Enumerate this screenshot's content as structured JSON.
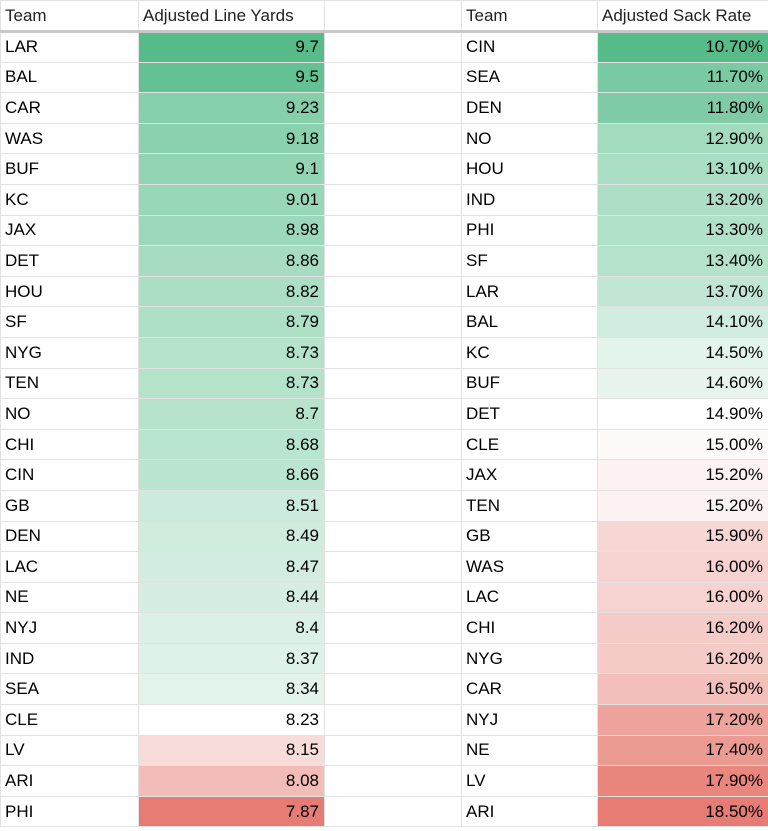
{
  "headers": {
    "team_a": "Team",
    "metric_a": "Adjusted Line Yards",
    "team_b": "Team",
    "metric_b": "Adjusted Sack Rate"
  },
  "rows": [
    {
      "t1": "LAR",
      "v1": "9.7",
      "c1": "#57bb8a",
      "t2": "CIN",
      "v2": "10.70%",
      "c2": "#57bb8a"
    },
    {
      "t1": "BAL",
      "v1": "9.5",
      "c1": "#64c194",
      "t2": "SEA",
      "v2": "11.70%",
      "c2": "#7acaa3"
    },
    {
      "t1": "CAR",
      "v1": "9.23",
      "c1": "#86cfab",
      "t2": "DEN",
      "v2": "11.80%",
      "c2": "#7ecba5"
    },
    {
      "t1": "WAS",
      "v1": "9.18",
      "c1": "#8bd1af",
      "t2": "NO",
      "v2": "12.90%",
      "c2": "#a3dbbe"
    },
    {
      "t1": "BUF",
      "v1": "9.1",
      "c1": "#92d4b4",
      "t2": "HOU",
      "v2": "13.10%",
      "c2": "#aadec4"
    },
    {
      "t1": "KC",
      "v1": "9.01",
      "c1": "#99d7b9",
      "t2": "IND",
      "v2": "13.20%",
      "c2": "#aedfc6"
    },
    {
      "t1": "JAX",
      "v1": "8.98",
      "c1": "#9cd8bb",
      "t2": "PHI",
      "v2": "13.30%",
      "c2": "#b1e1c9"
    },
    {
      "t1": "DET",
      "v1": "8.86",
      "c1": "#a7dcc2",
      "t2": "SF",
      "v2": "13.40%",
      "c2": "#b5e2cb"
    },
    {
      "t1": "HOU",
      "v1": "8.82",
      "c1": "#abdec5",
      "t2": "LAR",
      "v2": "13.70%",
      "c2": "#c1e7d4"
    },
    {
      "t1": "SF",
      "v1": "8.79",
      "c1": "#aedfc7",
      "t2": "BAL",
      "v2": "14.10%",
      "c2": "#d1ede0"
    },
    {
      "t1": "NYG",
      "v1": "8.73",
      "c1": "#b4e2cb",
      "t2": "KC",
      "v2": "14.50%",
      "c2": "#e3f4eb"
    },
    {
      "t1": "TEN",
      "v1": "8.73",
      "c1": "#b4e2cb",
      "t2": "BUF",
      "v2": "14.60%",
      "c2": "#e8f5ef"
    },
    {
      "t1": "NO",
      "v1": "8.7",
      "c1": "#b7e3cd",
      "t2": "DET",
      "v2": "14.90%",
      "c2": "#ffffff"
    },
    {
      "t1": "CHI",
      "v1": "8.68",
      "c1": "#b9e4cf",
      "t2": "CLE",
      "v2": "15.00%",
      "c2": "#fefafa"
    },
    {
      "t1": "CIN",
      "v1": "8.66",
      "c1": "#bbe5d0",
      "t2": "JAX",
      "v2": "15.20%",
      "c2": "#fcf2f1"
    },
    {
      "t1": "GB",
      "v1": "8.51",
      "c1": "#ccebdc",
      "t2": "TEN",
      "v2": "15.20%",
      "c2": "#fcf2f1"
    },
    {
      "t1": "DEN",
      "v1": "8.49",
      "c1": "#cfecdd",
      "t2": "GB",
      "v2": "15.90%",
      "c2": "#f7d7d4"
    },
    {
      "t1": "LAC",
      "v1": "8.47",
      "c1": "#d2eddf",
      "t2": "WAS",
      "v2": "16.00%",
      "c2": "#f6d3d0"
    },
    {
      "t1": "NE",
      "v1": "8.44",
      "c1": "#d6eee2",
      "t2": "LAC",
      "v2": "16.00%",
      "c2": "#f6d3d0"
    },
    {
      "t1": "NYJ",
      "v1": "8.4",
      "c1": "#dbf0e6",
      "t2": "CHI",
      "v2": "16.20%",
      "c2": "#f5cbc7"
    },
    {
      "t1": "IND",
      "v1": "8.37",
      "c1": "#dff2e9",
      "t2": "NYG",
      "v2": "16.20%",
      "c2": "#f5cbc7"
    },
    {
      "t1": "SEA",
      "v1": "8.34",
      "c1": "#e3f4eb",
      "t2": "CAR",
      "v2": "16.50%",
      "c2": "#f3bfbb"
    },
    {
      "t1": "CLE",
      "v1": "8.23",
      "c1": "#ffffff",
      "t2": "NYJ",
      "v2": "17.20%",
      "c2": "#eea39c"
    },
    {
      "t1": "LV",
      "v1": "8.15",
      "c1": "#f8dcda",
      "t2": "NE",
      "v2": "17.40%",
      "c2": "#ec9b93"
    },
    {
      "t1": "ARI",
      "v1": "8.08",
      "c1": "#f2bcb8",
      "t2": "LV",
      "v2": "17.90%",
      "c2": "#e9877e"
    },
    {
      "t1": "PHI",
      "v1": "7.87",
      "c1": "#e67c73",
      "t2": "ARI",
      "v2": "18.50%",
      "c2": "#e67c73"
    }
  ]
}
